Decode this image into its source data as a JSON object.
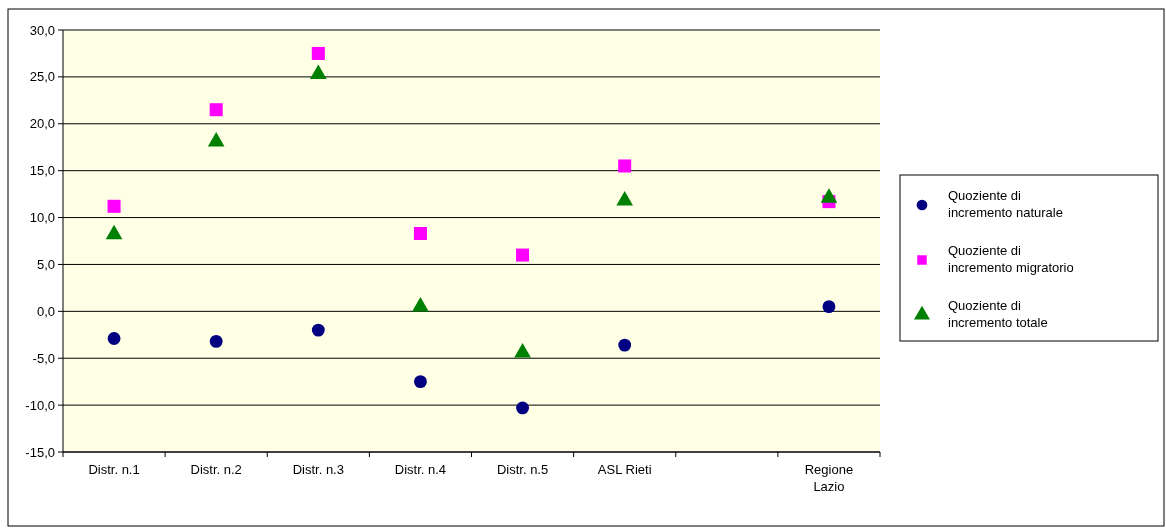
{
  "chart_data": {
    "type": "scatter",
    "categories": [
      "Distr. n.1",
      "Distr. n.2",
      "Distr. n.3",
      "Distr. n.4",
      "Distr. n.5",
      "ASL Rieti",
      null,
      "Regione Lazio"
    ],
    "series": [
      {
        "name": "Quoziente di incremento naturale",
        "color": "#000080",
        "marker": "circle",
        "values": [
          -2.9,
          -3.2,
          -2.0,
          -7.5,
          -10.3,
          -3.6,
          null,
          0.5
        ]
      },
      {
        "name": "Quoziente di incremento migratorio",
        "color": "#ff00ff",
        "marker": "square",
        "values": [
          11.2,
          21.5,
          27.5,
          8.3,
          6.0,
          15.5,
          null,
          11.7
        ]
      },
      {
        "name": "Quoziente di incremento totale",
        "color": "#008000",
        "marker": "triangle",
        "values": [
          8.2,
          18.1,
          25.3,
          0.5,
          -4.4,
          11.8,
          null,
          12.1
        ]
      }
    ],
    "ylim": [
      -15,
      30
    ],
    "yticks": [
      {
        "value": -15,
        "label": "-15,0"
      },
      {
        "value": -10,
        "label": "-10,0"
      },
      {
        "value": -5,
        "label": "-5,0"
      },
      {
        "value": 0,
        "label": "0,0"
      },
      {
        "value": 5,
        "label": "5,0"
      },
      {
        "value": 10,
        "label": "10,0"
      },
      {
        "value": 15,
        "label": "15,0"
      },
      {
        "value": 20,
        "label": "20,0"
      },
      {
        "value": 25,
        "label": "25,0"
      },
      {
        "value": 30,
        "label": "30,0"
      }
    ],
    "grid": "y",
    "legend": "right"
  }
}
